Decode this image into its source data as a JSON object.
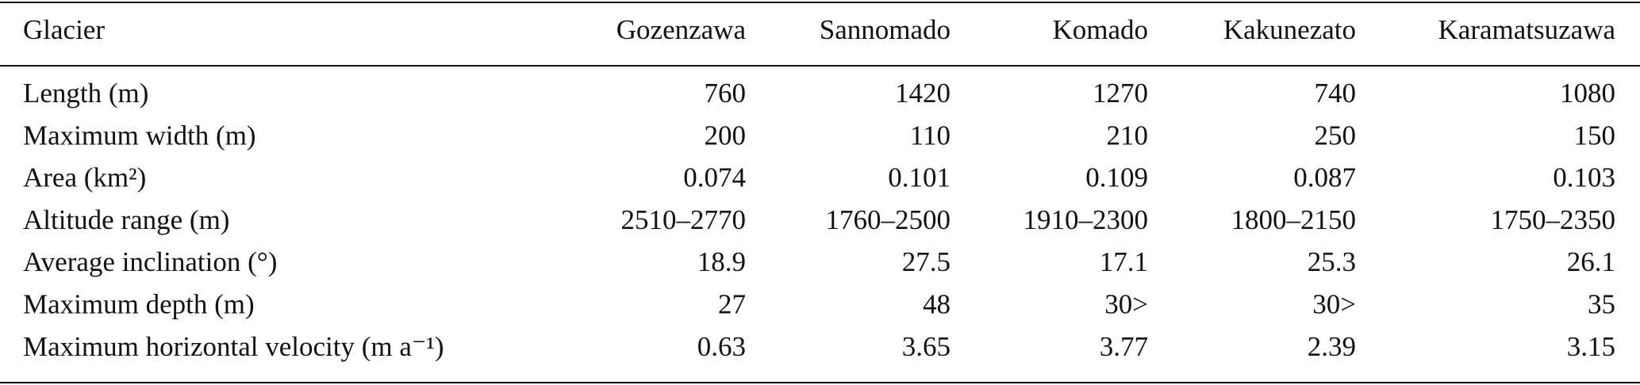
{
  "table": {
    "header": [
      "Glacier",
      "Gozenzawa",
      "Sannomado",
      "Komado",
      "Kakunezato",
      "Karamatsuzawa"
    ],
    "rows": [
      [
        "Length (m)",
        "760",
        "1420",
        "1270",
        "740",
        "1080"
      ],
      [
        "Maximum width (m)",
        "200",
        "110",
        "210",
        "250",
        "150"
      ],
      [
        "Area (km²)",
        "0.074",
        "0.101",
        "0.109",
        "0.087",
        "0.103"
      ],
      [
        "Altitude range (m)",
        "2510–2770",
        "1760–2500",
        "1910–2300",
        "1800–2150",
        "1750–2350"
      ],
      [
        "Average inclination (°)",
        "18.9",
        "27.5",
        "17.1",
        "25.3",
        "26.1"
      ],
      [
        "Maximum depth (m)",
        "27",
        "48",
        "30>",
        "30>",
        "35"
      ],
      [
        "Maximum horizontal velocity (m a⁻¹)",
        "0.63",
        "3.65",
        "3.77",
        "2.39",
        "3.15"
      ]
    ]
  }
}
